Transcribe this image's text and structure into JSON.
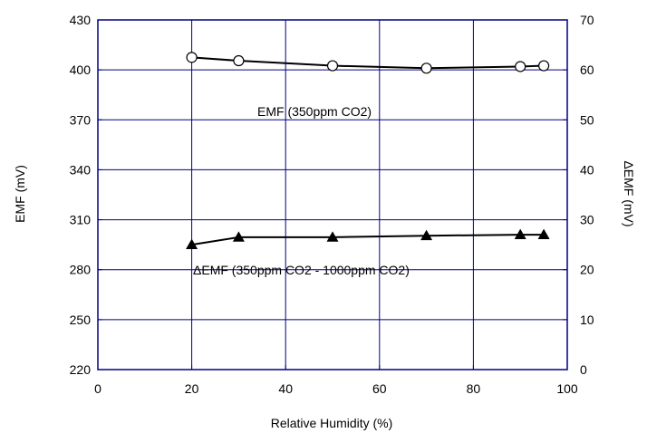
{
  "chart_data": {
    "type": "line",
    "xlabel": "Relative Humidity (%)",
    "ylabel": "EMF (mV)",
    "y2label": "ΔEMF (mV)",
    "xlim": [
      0,
      100
    ],
    "ylim": [
      220,
      430
    ],
    "y2lim": [
      0,
      70
    ],
    "xticks": [
      0,
      20,
      40,
      60,
      80,
      100
    ],
    "yticks": [
      220,
      250,
      280,
      310,
      340,
      370,
      400,
      430
    ],
    "y2ticks": [
      0,
      10,
      20,
      30,
      40,
      50,
      60,
      70
    ],
    "grid": true,
    "series": [
      {
        "name": "EMF (350ppm CO2)",
        "axis": "left",
        "marker": "circle-open",
        "x": [
          20,
          30,
          50,
          70,
          90,
          95
        ],
        "y": [
          407.5,
          405.5,
          402.5,
          401.0,
          402.0,
          402.5
        ]
      },
      {
        "name": "ΔEMF (350ppm CO2 - 1000ppm CO2)",
        "axis": "right",
        "marker": "triangle-filled",
        "x": [
          20,
          30,
          50,
          70,
          90,
          95
        ],
        "y": [
          25.0,
          26.5,
          26.5,
          26.8,
          27.0,
          27.0
        ]
      }
    ],
    "colors": {
      "line": "#000000",
      "grid": "#000080",
      "frame": "#000080"
    }
  }
}
